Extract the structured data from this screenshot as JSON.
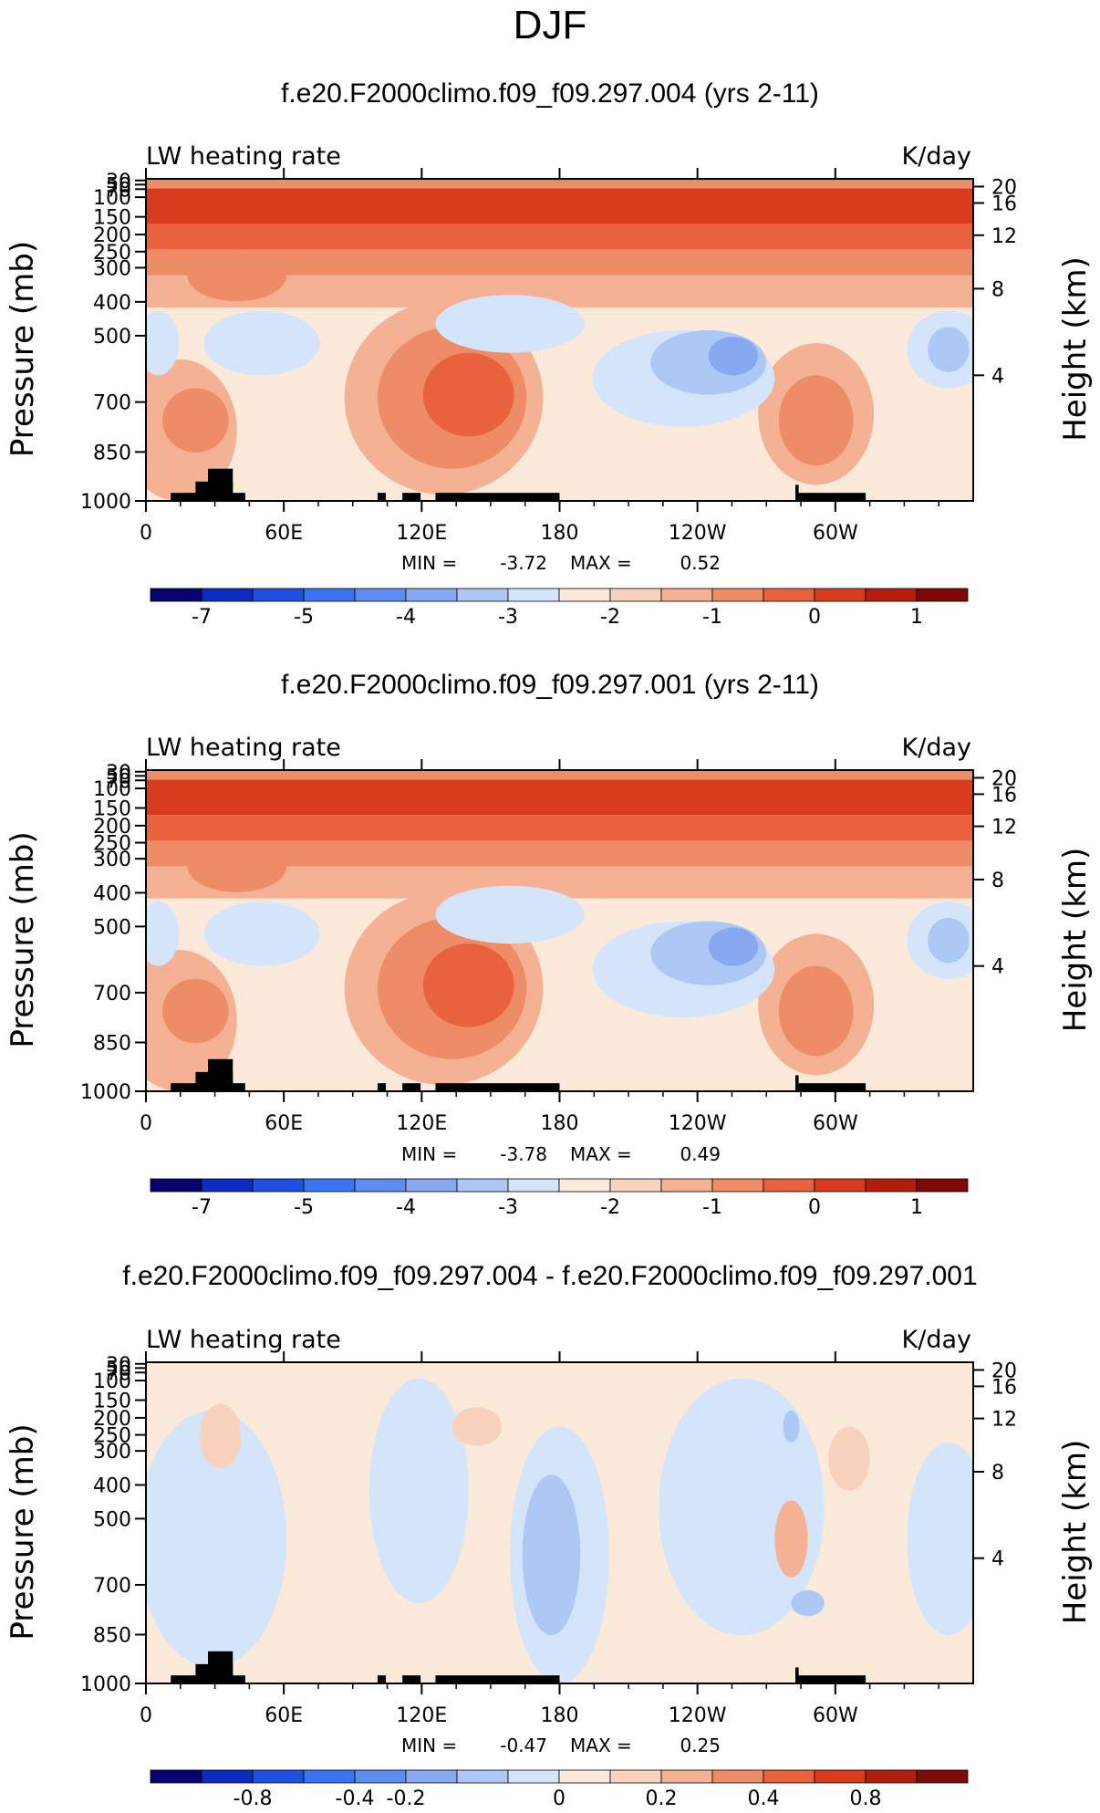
{
  "page_title": "DJF",
  "chart_data": [
    {
      "type": "contour",
      "title": "f.e20.F2000climo.f09_f09.297.004 (yrs 2-11)",
      "variable": "LW heating rate",
      "units": "K/day",
      "ylabel": "Pressure (mb)",
      "y2label": "Height (km)",
      "x_ticks": [
        "0",
        "60E",
        "120E",
        "180",
        "120W",
        "60W"
      ],
      "y_ticks": [
        "30",
        "50",
        "70",
        "100",
        "150",
        "200",
        "250",
        "300",
        "400",
        "500",
        "700",
        "850",
        "1000"
      ],
      "y2_ticks": [
        "20",
        "16",
        "12",
        "8",
        "4"
      ],
      "min_label": "MIN =",
      "min_value": "-3.72",
      "max_label": "MAX =",
      "max_value": "0.52",
      "colorbar_labels": [
        "-7",
        "-5",
        "-4",
        "-3",
        "-2",
        "-1",
        "0",
        "1"
      ],
      "colors": [
        "#08006e",
        "#0a2cc0",
        "#1f4fe0",
        "#3b73f0",
        "#5d8cef",
        "#86a9f2",
        "#aec8f5",
        "#d4e4fb",
        "#fbe9da",
        "#f8d2bd",
        "#f4b193",
        "#ef8c68",
        "#e9623d",
        "#d83c1c",
        "#b31e0c",
        "#7d0a05"
      ]
    },
    {
      "type": "contour",
      "title": "f.e20.F2000climo.f09_f09.297.001 (yrs 2-11)",
      "variable": "LW heating rate",
      "units": "K/day",
      "ylabel": "Pressure (mb)",
      "y2label": "Height (km)",
      "x_ticks": [
        "0",
        "60E",
        "120E",
        "180",
        "120W",
        "60W"
      ],
      "y_ticks": [
        "30",
        "50",
        "70",
        "100",
        "150",
        "200",
        "250",
        "300",
        "400",
        "500",
        "700",
        "850",
        "1000"
      ],
      "y2_ticks": [
        "20",
        "16",
        "12",
        "8",
        "4"
      ],
      "min_label": "MIN =",
      "min_value": "-3.78",
      "max_label": "MAX =",
      "max_value": "0.49",
      "colorbar_labels": [
        "-7",
        "-5",
        "-4",
        "-3",
        "-2",
        "-1",
        "0",
        "1"
      ],
      "colors": [
        "#08006e",
        "#0a2cc0",
        "#1f4fe0",
        "#3b73f0",
        "#5d8cef",
        "#86a9f2",
        "#aec8f5",
        "#d4e4fb",
        "#fbe9da",
        "#f8d2bd",
        "#f4b193",
        "#ef8c68",
        "#e9623d",
        "#d83c1c",
        "#b31e0c",
        "#7d0a05"
      ]
    },
    {
      "type": "contour",
      "title": "f.e20.F2000climo.f09_f09.297.004 - f.e20.F2000climo.f09_f09.297.001",
      "variable": "LW heating rate",
      "units": "K/day",
      "ylabel": "Pressure (mb)",
      "y2label": "Height (km)",
      "x_ticks": [
        "0",
        "60E",
        "120E",
        "180",
        "120W",
        "60W"
      ],
      "y_ticks": [
        "30",
        "50",
        "70",
        "100",
        "150",
        "200",
        "250",
        "300",
        "400",
        "500",
        "700",
        "850",
        "1000"
      ],
      "y2_ticks": [
        "20",
        "16",
        "12",
        "8",
        "4"
      ],
      "min_label": "MIN =",
      "min_value": "-0.47",
      "max_label": "MAX =",
      "max_value": "0.25",
      "colorbar_labels": [
        "-0.8",
        "-0.4",
        "-0.2",
        "0",
        "0.2",
        "0.4",
        "0.8"
      ],
      "colors": [
        "#08006e",
        "#0a2cc0",
        "#1f4fe0",
        "#3b73f0",
        "#5d8cef",
        "#86a9f2",
        "#aec8f5",
        "#d4e4fb",
        "#fbe9da",
        "#f8d2bd",
        "#f4b193",
        "#ef8c68",
        "#e9623d",
        "#d83c1c",
        "#b31e0c",
        "#7d0a05"
      ]
    }
  ]
}
